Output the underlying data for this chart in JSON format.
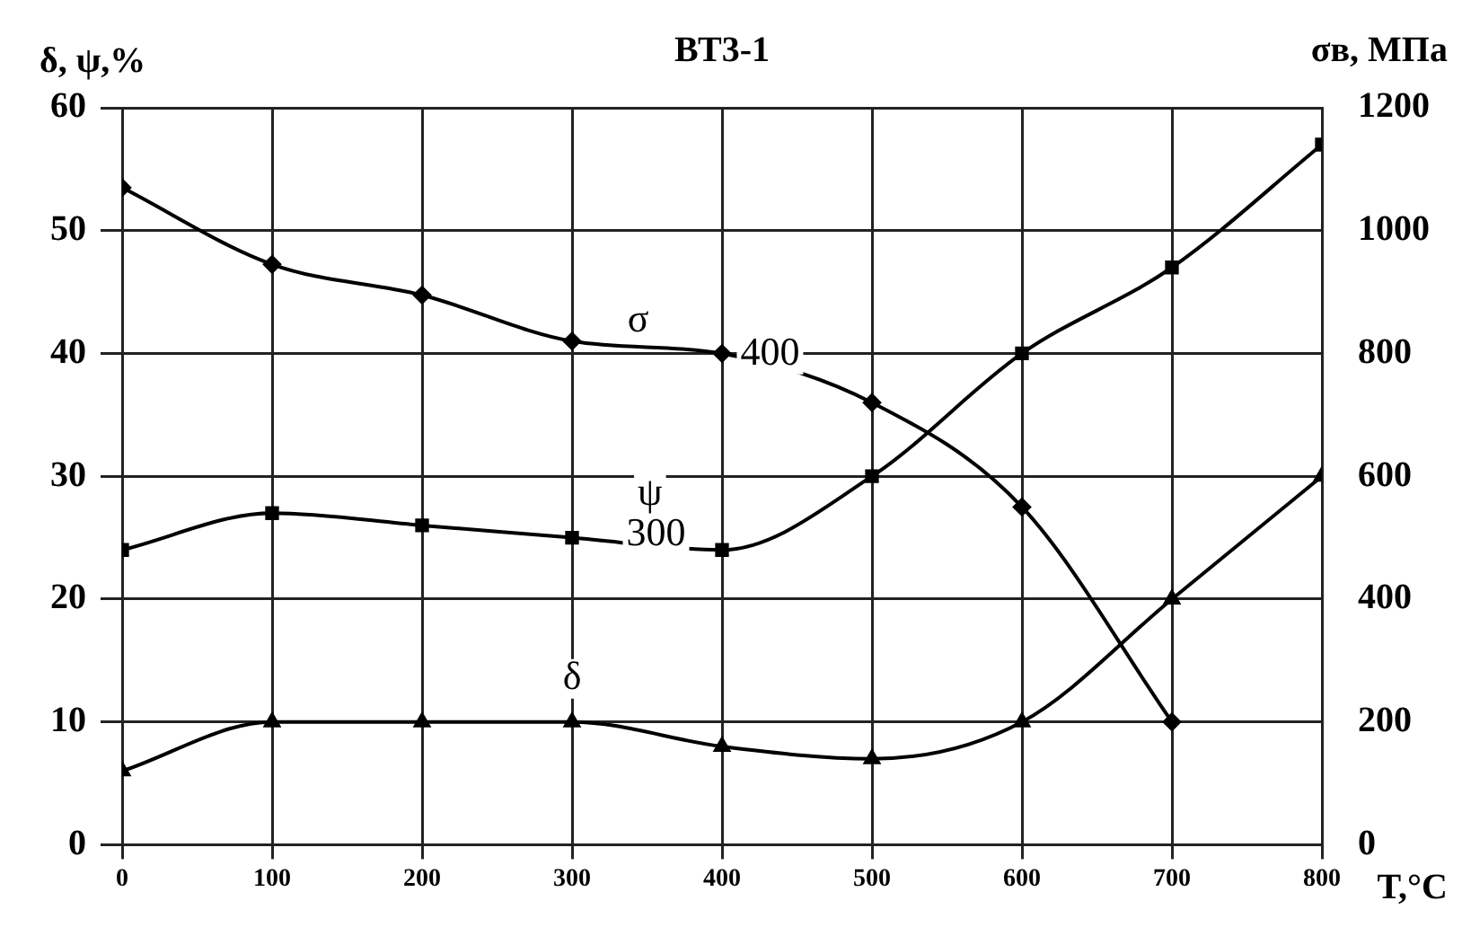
{
  "chart_data": {
    "type": "line",
    "title": "ВТ3-1",
    "xlabel": "T,°C",
    "ylabel": "δ, ψ,%",
    "y2label": "σв, МПа",
    "x": [
      0,
      100,
      200,
      300,
      400,
      500,
      600,
      700,
      800
    ],
    "xlim": [
      0,
      800
    ],
    "xticks": [
      0,
      100,
      200,
      300,
      400,
      500,
      600,
      700,
      800
    ],
    "ylim": [
      0,
      60
    ],
    "yticks": [
      0,
      10,
      20,
      30,
      40,
      50,
      60
    ],
    "y2lim": [
      0,
      1200
    ],
    "y2ticks": [
      0,
      200,
      400,
      600,
      800,
      1000,
      1200
    ],
    "grid": true,
    "legend": false,
    "line_style": "solid",
    "series": [
      {
        "color": "#000000",
        "axis": "y2",
        "marker": "diamond",
        "values": [
          1070,
          945,
          895,
          820,
          800,
          720,
          550,
          200,
          null
        ]
      },
      {
        "color": "#000000",
        "marker": "square",
        "values": [
          24,
          27,
          26,
          25,
          24,
          30,
          40,
          47,
          57
        ]
      },
      {
        "color": "#000000",
        "marker": "triangle",
        "values": [
          6,
          10,
          10,
          10,
          8,
          7,
          10,
          20,
          30
        ]
      }
    ],
    "annotations": [
      "σ",
      "400",
      "ψ",
      "300",
      "δ"
    ]
  }
}
